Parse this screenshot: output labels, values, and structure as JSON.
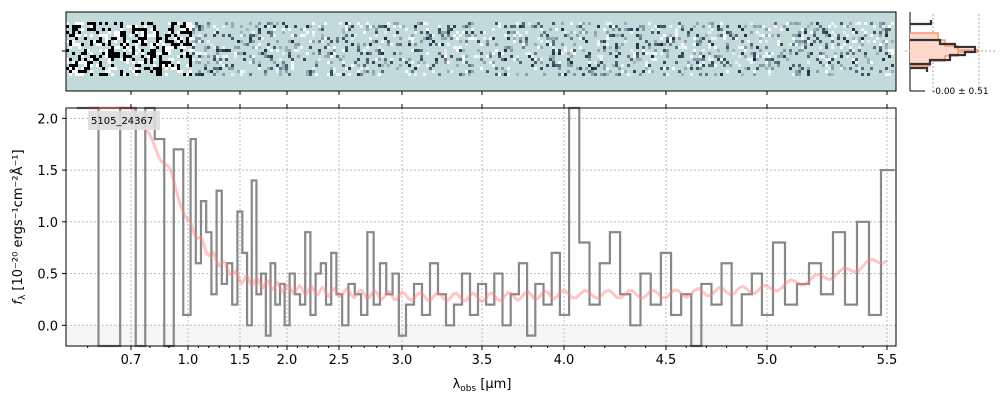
{
  "chart_data": {
    "type": "line",
    "object_id": "5105_24367",
    "xlabel": "λobs [μm]",
    "xlabel_main": "λ",
    "xlabel_sub": "obs",
    "xlabel_unit": " [μm]",
    "ylabel": "fλ [10^-20 ergs^-1 cm^-2 Å^-1]",
    "ylabel_text": "f",
    "ylabel_sub": "λ",
    "ylabel_unit": " [10⁻²⁰ ergs⁻¹cm⁻²Å⁻¹]",
    "xticks": [
      "0.7",
      "1.0",
      "1.5",
      "2.0",
      "2.5",
      "3.0",
      "3.5",
      "4.0",
      "4.5",
      "5.0",
      "5.5"
    ],
    "yticks": [
      "0.0",
      "0.5",
      "1.0",
      "1.5",
      "2.0"
    ],
    "ylim": [
      -0.2,
      2.1
    ],
    "xlim": [
      0.55,
      5.53
    ],
    "grid": true,
    "x_start": 0.6,
    "x_step": 0.05,
    "flux": [
      3,
      -1,
      3,
      -0.5,
      2.5,
      1.8,
      -0.2,
      1.7,
      0.1,
      1.8,
      0.6,
      1.2,
      0.9,
      0.3,
      1.3,
      0.4,
      0.6,
      0.2,
      1.1,
      0.7,
      0.0,
      1.4,
      0.3,
      0.5,
      -0.1,
      0.6,
      0.2,
      0.4,
      0.0,
      0.5,
      0.3,
      0.2,
      0.9,
      0.1,
      0.5,
      0.6,
      0.2,
      0.7,
      0.3,
      0.0,
      0.4,
      0.3,
      0.1,
      0.9,
      0.2,
      0.6,
      0.3,
      0.5,
      -0.1,
      0.2,
      0.4,
      0.1,
      0.6,
      0.3,
      0.0,
      0.2,
      0.5,
      0.1,
      0.4,
      0.2,
      0.5,
      0.0,
      0.3,
      0.6,
      -0.1,
      0.4,
      0.2,
      0.7,
      0.1,
      2.1,
      0.8,
      0.2,
      0.6,
      0.9,
      0.3,
      0.0,
      0.5,
      0.2,
      0.7,
      0.1,
      0.3,
      -0.2,
      0.4,
      0.2,
      0.6,
      0.0,
      0.3,
      0.5,
      0.1,
      0.8,
      0.2,
      0.4,
      0.6,
      0.3,
      0.9,
      0.2,
      1.0,
      0.1,
      1.5
    ],
    "model": [
      [
        0.6,
        2.5
      ],
      [
        0.8,
        1.8
      ],
      [
        0.9,
        1.5
      ],
      [
        1.0,
        1.0
      ],
      [
        1.2,
        0.7
      ],
      [
        1.5,
        0.45
      ],
      [
        2.0,
        0.35
      ],
      [
        3.0,
        0.28
      ],
      [
        3.5,
        0.27
      ],
      [
        4.0,
        0.3
      ],
      [
        4.5,
        0.3
      ],
      [
        5.0,
        0.35
      ],
      [
        5.3,
        0.5
      ],
      [
        5.5,
        0.65
      ]
    ],
    "colors": {
      "flux": "#888888",
      "model": "#ff8080",
      "spec2d_bg": "#c2dada"
    },
    "histogram_label": "-0.00 ± 0.51"
  }
}
